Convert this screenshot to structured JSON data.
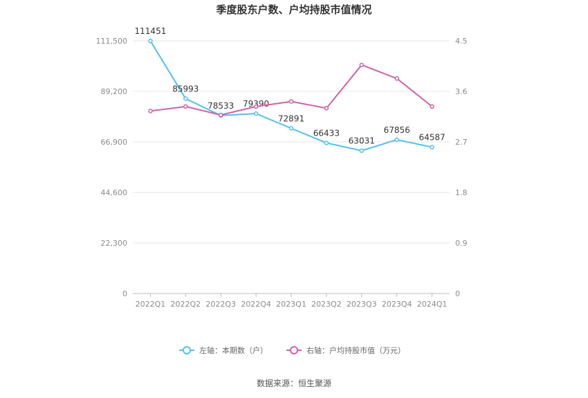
{
  "chart_data": {
    "type": "line",
    "title": "季度股东户数、户均持股市值情况",
    "categories": [
      "2022Q1",
      "2022Q2",
      "2022Q3",
      "2022Q4",
      "2023Q1",
      "2023Q2",
      "2023Q3",
      "2023Q4",
      "2024Q1"
    ],
    "left_axis": {
      "ticks": [
        "0",
        "22,300",
        "44,600",
        "66,900",
        "89,200",
        "111,500"
      ],
      "range": [
        0,
        111500
      ]
    },
    "right_axis": {
      "ticks": [
        "0",
        "0.9",
        "1.8",
        "2.7",
        "3.6",
        "4.5"
      ],
      "range": [
        0,
        4.5
      ]
    },
    "series": [
      {
        "name": "左轴：本期数（户）",
        "axis": "left",
        "color": "#4fc0ef",
        "values": [
          111451,
          85993,
          78533,
          79390,
          72891,
          66433,
          63031,
          67856,
          64587
        ],
        "labels": [
          "111451",
          "85993",
          "78533",
          "79390",
          "72891",
          "66433",
          "63031",
          "67856",
          "64587"
        ]
      },
      {
        "name": "右轴：户均持股市值（万元）",
        "axis": "right",
        "color": "#d05fa8",
        "values": [
          3.25,
          3.33,
          3.18,
          3.33,
          3.42,
          3.3,
          4.07,
          3.83,
          3.33
        ]
      }
    ],
    "grid": true,
    "legend_position": "bottom"
  },
  "source": "数据来源：恒生聚源"
}
